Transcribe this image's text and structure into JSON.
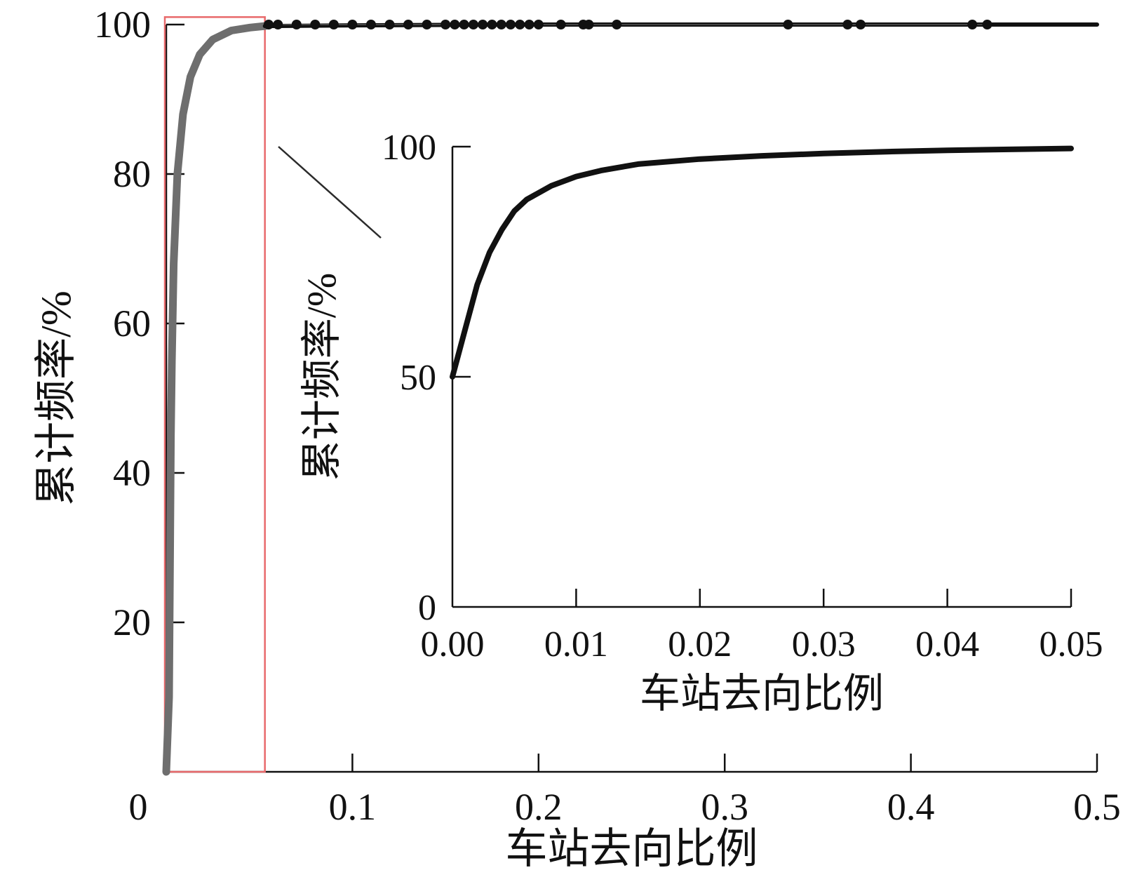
{
  "chart_data": [
    {
      "id": "main",
      "type": "line",
      "xlabel": "车站去向比例",
      "ylabel": "累计频率/%",
      "xlim": [
        0,
        0.5
      ],
      "ylim": [
        0,
        100
      ],
      "x_ticks": [
        0,
        0.1,
        0.2,
        0.3,
        0.4,
        0.5
      ],
      "x_tick_labels": [
        "0",
        "0.1",
        "0.2",
        "0.3",
        "0.4",
        "0.5"
      ],
      "y_ticks": [
        20,
        40,
        60,
        80,
        100
      ],
      "y_tick_labels": [
        "20",
        "40",
        "60",
        "80",
        "100"
      ],
      "grid": false,
      "series": [
        {
          "color": "#6e6e6e",
          "points": [
            [
              0.0,
              0
            ],
            [
              0.0015,
              10
            ],
            [
              0.0025,
              45
            ],
            [
              0.003,
              55
            ],
            [
              0.004,
              68
            ],
            [
              0.006,
              80
            ],
            [
              0.009,
              88
            ],
            [
              0.013,
              93
            ],
            [
              0.018,
              96
            ],
            [
              0.025,
              98
            ],
            [
              0.035,
              99.2
            ],
            [
              0.045,
              99.6
            ],
            [
              0.053,
              99.8
            ]
          ]
        },
        {
          "color": "#111111",
          "points": [
            [
              0.053,
              99.8
            ],
            [
              0.1,
              99.9
            ],
            [
              0.2,
              100
            ],
            [
              0.5,
              100
            ]
          ]
        }
      ],
      "markers": {
        "color": "#111111",
        "x": [
          0.055,
          0.06,
          0.07,
          0.08,
          0.09,
          0.1,
          0.11,
          0.12,
          0.13,
          0.14,
          0.15,
          0.155,
          0.16,
          0.165,
          0.17,
          0.175,
          0.18,
          0.185,
          0.19,
          0.195,
          0.2,
          0.212,
          0.224,
          0.227,
          0.242,
          0.334,
          0.366,
          0.373,
          0.433,
          0.441
        ],
        "y": 100
      },
      "highlight_box": {
        "x": [
          0,
          0.053
        ],
        "y": [
          0,
          101
        ],
        "color": "#e8696b"
      }
    },
    {
      "id": "inset",
      "type": "line",
      "xlabel": "车站去向比例",
      "ylabel": "累计频率/%",
      "xlim": [
        0,
        0.05
      ],
      "ylim": [
        0,
        100
      ],
      "x_ticks": [
        0,
        0.01,
        0.02,
        0.03,
        0.04,
        0.05
      ],
      "x_tick_labels": [
        "0.00",
        "0.01",
        "0.02",
        "0.03",
        "0.04",
        "0.05"
      ],
      "y_ticks": [
        0,
        50,
        100
      ],
      "y_tick_labels": [
        "0",
        "50",
        "100"
      ],
      "grid": false,
      "series": [
        {
          "color": "#111111",
          "points": [
            [
              0.0,
              50
            ],
            [
              0.001,
              60
            ],
            [
              0.002,
              70
            ],
            [
              0.003,
              77
            ],
            [
              0.004,
              82
            ],
            [
              0.005,
              86
            ],
            [
              0.006,
              88.5
            ],
            [
              0.008,
              91.5
            ],
            [
              0.01,
              93.5
            ],
            [
              0.012,
              94.8
            ],
            [
              0.015,
              96.2
            ],
            [
              0.02,
              97.3
            ],
            [
              0.025,
              98
            ],
            [
              0.03,
              98.5
            ],
            [
              0.035,
              98.9
            ],
            [
              0.04,
              99.2
            ],
            [
              0.045,
              99.4
            ],
            [
              0.05,
              99.6
            ]
          ]
        }
      ]
    }
  ]
}
